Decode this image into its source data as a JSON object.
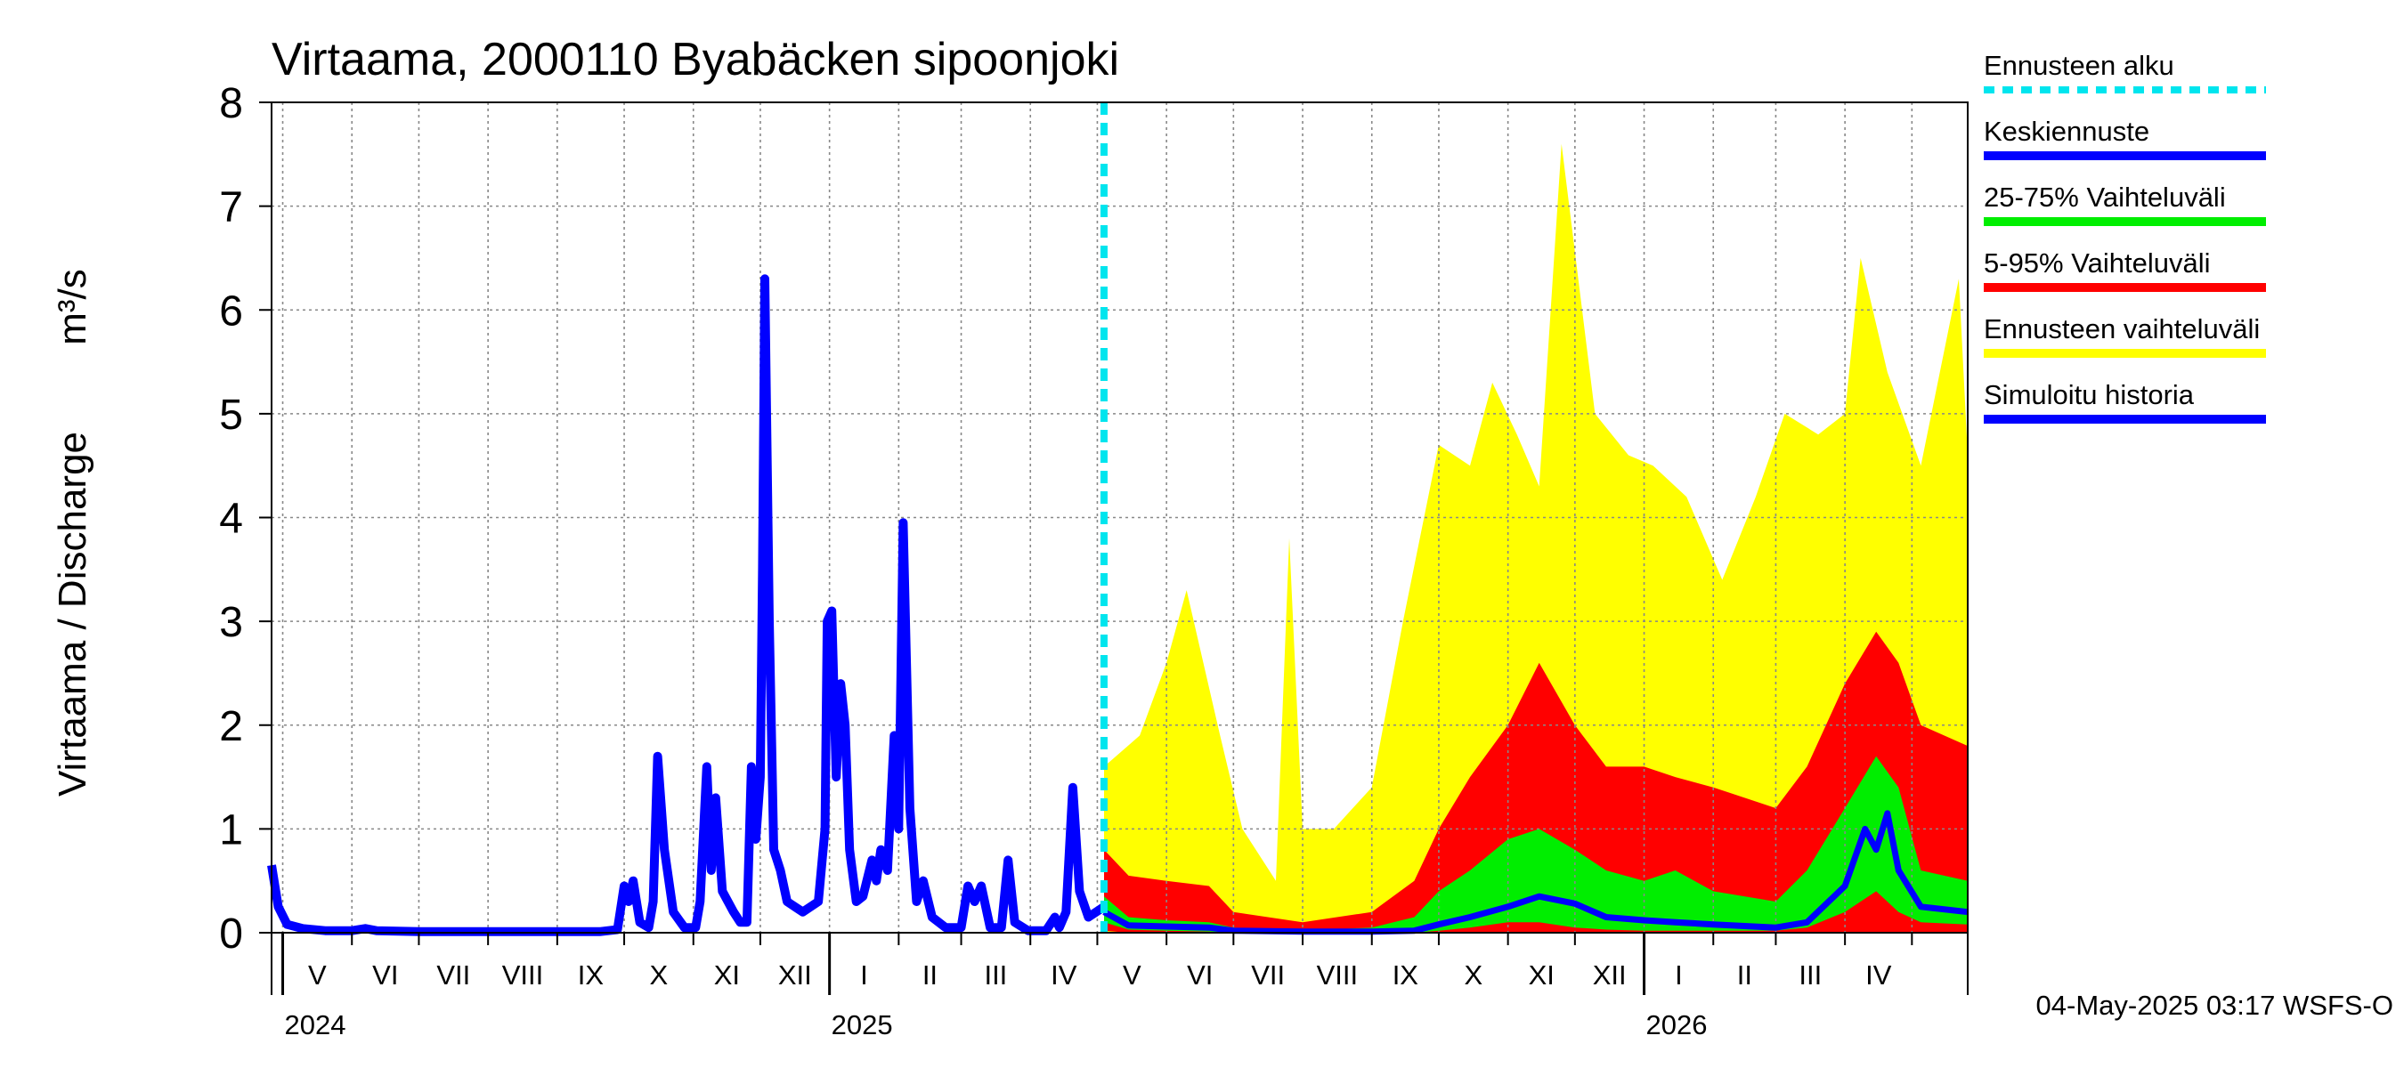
{
  "chart_data": {
    "type": "area",
    "title": "Virtaama, 2000110 Byabäcken sipoonjoki",
    "ylabel": "Virtaama / Discharge",
    "yunit": "m³/s",
    "ylim": [
      0,
      8
    ],
    "yticks": [
      0,
      1,
      2,
      3,
      4,
      5,
      6,
      7,
      8
    ],
    "xlim": [
      "2024-04-26",
      "2026-05-26"
    ],
    "grid": true,
    "legend_position": "right",
    "month_labels": [
      "V",
      "VI",
      "VII",
      "VIII",
      "IX",
      "X",
      "XI",
      "XII",
      "I",
      "II",
      "III",
      "IV",
      "V",
      "VI",
      "VII",
      "VIII",
      "IX",
      "X",
      "XI",
      "XII",
      "I",
      "II",
      "III",
      "IV"
    ],
    "month_starts": [
      "2024-05-01",
      "2024-06-01",
      "2024-07-01",
      "2024-08-01",
      "2024-09-01",
      "2024-10-01",
      "2024-11-01",
      "2024-12-01",
      "2025-01-01",
      "2025-02-01",
      "2025-03-01",
      "2025-04-01",
      "2025-05-01",
      "2025-06-01",
      "2025-07-01",
      "2025-08-01",
      "2025-09-01",
      "2025-10-01",
      "2025-11-01",
      "2025-12-01",
      "2026-01-01",
      "2026-02-01",
      "2026-03-01",
      "2026-04-01",
      "2026-05-01"
    ],
    "year_labels": [
      {
        "label": "2024",
        "date": "2024-05-01"
      },
      {
        "label": "2025",
        "date": "2025-01-01"
      },
      {
        "label": "2026",
        "date": "2026-01-01"
      }
    ],
    "forecast_start": "2025-05-04",
    "colors": {
      "forecast_start": "#00e5ee",
      "median": "#0000ff",
      "p25_75": "#00ee00",
      "p5_95": "#ff0000",
      "range": "#ffff00",
      "history": "#0000ff"
    },
    "legend": [
      {
        "label": "Ennusteen alku",
        "key": "forecast_start",
        "style": "dashed"
      },
      {
        "label": "Keskiennuste",
        "key": "median",
        "style": "solid"
      },
      {
        "label": "25-75% Vaihteluväli",
        "key": "p25_75",
        "style": "solid"
      },
      {
        "label": "5-95% Vaihteluväli",
        "key": "p5_95",
        "style": "solid"
      },
      {
        "label": "Ennusteen vaihteluväli",
        "key": "range",
        "style": "solid"
      },
      {
        "label": "Simuloitu historia",
        "key": "history",
        "style": "solid"
      }
    ],
    "series": [
      {
        "name": "Simuloitu historia",
        "points": [
          [
            "2024-04-26",
            0.65
          ],
          [
            "2024-04-29",
            0.25
          ],
          [
            "2024-05-03",
            0.08
          ],
          [
            "2024-05-10",
            0.04
          ],
          [
            "2024-05-20",
            0.02
          ],
          [
            "2024-06-01",
            0.02
          ],
          [
            "2024-06-07",
            0.04
          ],
          [
            "2024-06-12",
            0.02
          ],
          [
            "2024-07-01",
            0.01
          ],
          [
            "2024-08-01",
            0.01
          ],
          [
            "2024-09-01",
            0.01
          ],
          [
            "2024-09-20",
            0.01
          ],
          [
            "2024-09-28",
            0.03
          ],
          [
            "2024-10-01",
            0.45
          ],
          [
            "2024-10-03",
            0.3
          ],
          [
            "2024-10-05",
            0.5
          ],
          [
            "2024-10-08",
            0.1
          ],
          [
            "2024-10-12",
            0.05
          ],
          [
            "2024-10-14",
            0.3
          ],
          [
            "2024-10-16",
            1.7
          ],
          [
            "2024-10-19",
            0.8
          ],
          [
            "2024-10-23",
            0.2
          ],
          [
            "2024-10-28",
            0.05
          ],
          [
            "2024-11-02",
            0.05
          ],
          [
            "2024-11-04",
            0.3
          ],
          [
            "2024-11-07",
            1.6
          ],
          [
            "2024-11-09",
            0.6
          ],
          [
            "2024-11-11",
            1.3
          ],
          [
            "2024-11-14",
            0.4
          ],
          [
            "2024-11-19",
            0.2
          ],
          [
            "2024-11-22",
            0.1
          ],
          [
            "2024-11-25",
            0.1
          ],
          [
            "2024-11-27",
            1.6
          ],
          [
            "2024-11-29",
            0.9
          ],
          [
            "2024-12-01",
            1.5
          ],
          [
            "2024-12-02",
            3.5
          ],
          [
            "2024-12-03",
            6.3
          ],
          [
            "2024-12-05",
            3.0
          ],
          [
            "2024-12-07",
            0.8
          ],
          [
            "2024-12-10",
            0.6
          ],
          [
            "2024-12-13",
            0.3
          ],
          [
            "2024-12-20",
            0.2
          ],
          [
            "2024-12-27",
            0.3
          ],
          [
            "2024-12-30",
            1.0
          ],
          [
            "2024-12-31",
            3.0
          ],
          [
            "2025-01-02",
            3.1
          ],
          [
            "2025-01-04",
            1.5
          ],
          [
            "2025-01-06",
            2.4
          ],
          [
            "2025-01-08",
            2.0
          ],
          [
            "2025-01-10",
            0.8
          ],
          [
            "2025-01-13",
            0.3
          ],
          [
            "2025-01-16",
            0.35
          ],
          [
            "2025-01-20",
            0.7
          ],
          [
            "2025-01-22",
            0.5
          ],
          [
            "2025-01-24",
            0.8
          ],
          [
            "2025-01-27",
            0.6
          ],
          [
            "2025-01-30",
            1.9
          ],
          [
            "2025-02-01",
            1.0
          ],
          [
            "2025-02-03",
            3.95
          ],
          [
            "2025-02-06",
            1.2
          ],
          [
            "2025-02-09",
            0.3
          ],
          [
            "2025-02-12",
            0.5
          ],
          [
            "2025-02-16",
            0.15
          ],
          [
            "2025-02-22",
            0.05
          ],
          [
            "2025-03-01",
            0.05
          ],
          [
            "2025-03-04",
            0.45
          ],
          [
            "2025-03-07",
            0.3
          ],
          [
            "2025-03-10",
            0.45
          ],
          [
            "2025-03-14",
            0.05
          ],
          [
            "2025-03-19",
            0.05
          ],
          [
            "2025-03-22",
            0.7
          ],
          [
            "2025-03-25",
            0.1
          ],
          [
            "2025-03-31",
            0.02
          ],
          [
            "2025-04-08",
            0.02
          ],
          [
            "2025-04-12",
            0.15
          ],
          [
            "2025-04-14",
            0.05
          ],
          [
            "2025-04-17",
            0.2
          ],
          [
            "2025-04-20",
            1.4
          ],
          [
            "2025-04-23",
            0.4
          ],
          [
            "2025-04-27",
            0.15
          ],
          [
            "2025-05-04",
            0.25
          ]
        ]
      },
      {
        "name": "Keskiennuste",
        "points": [
          [
            "2025-05-04",
            0.2
          ],
          [
            "2025-05-15",
            0.07
          ],
          [
            "2025-06-01",
            0.06
          ],
          [
            "2025-06-20",
            0.05
          ],
          [
            "2025-07-01",
            0.02
          ],
          [
            "2025-08-01",
            0.01
          ],
          [
            "2025-09-01",
            0.01
          ],
          [
            "2025-09-20",
            0.02
          ],
          [
            "2025-10-01",
            0.08
          ],
          [
            "2025-10-15",
            0.15
          ],
          [
            "2025-11-01",
            0.25
          ],
          [
            "2025-11-15",
            0.35
          ],
          [
            "2025-12-01",
            0.28
          ],
          [
            "2025-12-15",
            0.15
          ],
          [
            "2026-01-01",
            0.12
          ],
          [
            "2026-01-15",
            0.1
          ],
          [
            "2026-02-01",
            0.08
          ],
          [
            "2026-03-01",
            0.05
          ],
          [
            "2026-03-15",
            0.1
          ],
          [
            "2026-04-01",
            0.45
          ],
          [
            "2026-04-10",
            1.0
          ],
          [
            "2026-04-15",
            0.8
          ],
          [
            "2026-04-20",
            1.15
          ],
          [
            "2026-04-25",
            0.6
          ],
          [
            "2026-05-05",
            0.25
          ],
          [
            "2026-05-26",
            0.2
          ]
        ]
      },
      {
        "name": "25-75% Vaihteluväli",
        "points": [
          [
            "2025-05-04",
            0.1,
            0.35
          ],
          [
            "2025-05-15",
            0.03,
            0.15
          ],
          [
            "2025-06-01",
            0.02,
            0.12
          ],
          [
            "2025-06-20",
            0.01,
            0.1
          ],
          [
            "2025-07-01",
            0.0,
            0.05
          ],
          [
            "2025-08-01",
            0.0,
            0.02
          ],
          [
            "2025-09-01",
            0.0,
            0.05
          ],
          [
            "2025-09-20",
            0.0,
            0.15
          ],
          [
            "2025-10-01",
            0.02,
            0.4
          ],
          [
            "2025-10-15",
            0.05,
            0.6
          ],
          [
            "2025-11-01",
            0.1,
            0.9
          ],
          [
            "2025-11-15",
            0.1,
            1.0
          ],
          [
            "2025-12-01",
            0.05,
            0.8
          ],
          [
            "2025-12-15",
            0.03,
            0.6
          ],
          [
            "2026-01-01",
            0.02,
            0.5
          ],
          [
            "2026-01-15",
            0.02,
            0.6
          ],
          [
            "2026-02-01",
            0.02,
            0.4
          ],
          [
            "2026-03-01",
            0.02,
            0.3
          ],
          [
            "2026-03-15",
            0.05,
            0.6
          ],
          [
            "2026-04-01",
            0.2,
            1.2
          ],
          [
            "2026-04-15",
            0.4,
            1.7
          ],
          [
            "2026-04-25",
            0.2,
            1.4
          ],
          [
            "2026-05-05",
            0.1,
            0.6
          ],
          [
            "2026-05-26",
            0.08,
            0.5
          ]
        ]
      },
      {
        "name": "5-95% Vaihteluväli",
        "points": [
          [
            "2025-05-04",
            0.02,
            0.8
          ],
          [
            "2025-05-15",
            0.0,
            0.55
          ],
          [
            "2025-06-01",
            0.0,
            0.5
          ],
          [
            "2025-06-20",
            0.0,
            0.45
          ],
          [
            "2025-07-01",
            0.0,
            0.2
          ],
          [
            "2025-08-01",
            0.0,
            0.1
          ],
          [
            "2025-09-01",
            0.0,
            0.2
          ],
          [
            "2025-09-20",
            0.0,
            0.5
          ],
          [
            "2025-10-01",
            0.0,
            1.0
          ],
          [
            "2025-10-15",
            0.0,
            1.5
          ],
          [
            "2025-11-01",
            0.0,
            2.0
          ],
          [
            "2025-11-15",
            0.0,
            2.6
          ],
          [
            "2025-12-01",
            0.0,
            2.0
          ],
          [
            "2025-12-15",
            0.0,
            1.6
          ],
          [
            "2026-01-01",
            0.0,
            1.6
          ],
          [
            "2026-01-15",
            0.0,
            1.5
          ],
          [
            "2026-02-01",
            0.0,
            1.4
          ],
          [
            "2026-03-01",
            0.0,
            1.2
          ],
          [
            "2026-03-15",
            0.0,
            1.6
          ],
          [
            "2026-04-01",
            0.0,
            2.4
          ],
          [
            "2026-04-15",
            0.0,
            2.9
          ],
          [
            "2026-04-25",
            0.0,
            2.6
          ],
          [
            "2026-05-05",
            0.0,
            2.0
          ],
          [
            "2026-05-26",
            0.0,
            1.8
          ]
        ]
      },
      {
        "name": "Ennusteen vaihteluväli",
        "points": [
          [
            "2025-05-04",
            0.0,
            1.6
          ],
          [
            "2025-05-20",
            0.0,
            1.9
          ],
          [
            "2025-06-01",
            0.0,
            2.6
          ],
          [
            "2025-06-10",
            0.0,
            3.3
          ],
          [
            "2025-06-25",
            0.0,
            1.9
          ],
          [
            "2025-07-05",
            0.0,
            1.0
          ],
          [
            "2025-07-20",
            0.0,
            0.5
          ],
          [
            "2025-07-26",
            0.0,
            3.8
          ],
          [
            "2025-08-01",
            0.0,
            1.0
          ],
          [
            "2025-08-15",
            0.0,
            1.0
          ],
          [
            "2025-09-01",
            0.0,
            1.4
          ],
          [
            "2025-09-15",
            0.0,
            3.0
          ],
          [
            "2025-10-01",
            0.0,
            4.7
          ],
          [
            "2025-10-15",
            0.0,
            4.5
          ],
          [
            "2025-10-25",
            0.0,
            5.3
          ],
          [
            "2025-11-05",
            0.0,
            4.8
          ],
          [
            "2025-11-15",
            0.0,
            4.3
          ],
          [
            "2025-11-25",
            0.0,
            7.6
          ],
          [
            "2025-12-10",
            0.0,
            5.0
          ],
          [
            "2025-12-25",
            0.0,
            4.6
          ],
          [
            "2026-01-05",
            0.0,
            4.5
          ],
          [
            "2026-01-20",
            0.0,
            4.2
          ],
          [
            "2026-02-05",
            0.0,
            3.4
          ],
          [
            "2026-02-20",
            0.0,
            4.2
          ],
          [
            "2026-03-05",
            0.0,
            5.0
          ],
          [
            "2026-03-20",
            0.0,
            4.8
          ],
          [
            "2026-04-01",
            0.0,
            5.0
          ],
          [
            "2026-04-08",
            0.0,
            6.5
          ],
          [
            "2026-04-20",
            0.0,
            5.4
          ],
          [
            "2026-05-05",
            0.0,
            4.5
          ],
          [
            "2026-05-22",
            0.0,
            6.3
          ],
          [
            "2026-05-26",
            0.0,
            4.6
          ]
        ]
      }
    ]
  },
  "footer": "04-May-2025 03:17 WSFS-O"
}
